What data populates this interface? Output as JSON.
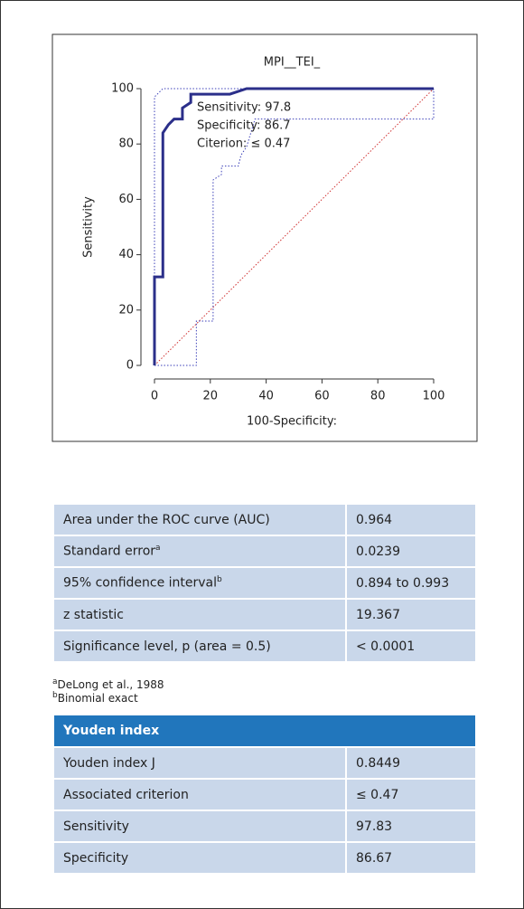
{
  "chart_data": {
    "type": "line",
    "title": "MPI__TEI_",
    "xlabel": "100-Specificity:",
    "ylabel": "Sensitivity",
    "xlim": [
      0,
      100
    ],
    "ylim": [
      0,
      100
    ],
    "xticks": [
      0,
      20,
      40,
      60,
      80,
      100
    ],
    "yticks": [
      0,
      20,
      40,
      60,
      80,
      100
    ],
    "series": [
      {
        "color": "#7b1fa2",
        "style": "diagonal",
        "x": [
          0,
          100
        ],
        "values": [
          0,
          100
        ]
      },
      {
        "color": "#3b3fb8",
        "style": "dotted",
        "x": [
          0,
          0,
          3,
          100
        ],
        "values": [
          0,
          97,
          100,
          100
        ]
      },
      {
        "color": "#3b3fb8",
        "style": "dotted",
        "x": [
          0,
          15,
          15,
          21,
          21,
          24,
          24,
          30,
          31,
          33,
          36,
          100,
          100
        ],
        "values": [
          0,
          0,
          16,
          16,
          67,
          69,
          72,
          72,
          76,
          79,
          89,
          89,
          100
        ]
      },
      {
        "color": "#2b2f8a",
        "style": "solid",
        "x": [
          0,
          0,
          3,
          3,
          5,
          7,
          10,
          10,
          13,
          13,
          27,
          33,
          100
        ],
        "values": [
          0,
          32,
          32,
          84,
          87,
          89,
          89,
          93,
          95,
          98,
          98,
          100,
          100
        ]
      }
    ],
    "annotations": [
      "Sensitivity: 97.8",
      "Specificity: 86.7",
      "Citerion: ≤ 0.47"
    ]
  },
  "table": {
    "rows": [
      [
        {
          "text": "Area under the ROC curve (AUC)"
        },
        {
          "text": "0.964"
        }
      ],
      [
        {
          "text": "Standard error",
          "sup": "a"
        },
        {
          "text": "0.0239"
        }
      ],
      [
        {
          "text": "95% confidence interval",
          "sup": "b"
        },
        {
          "text": "0.894 to 0.993"
        }
      ],
      [
        {
          "text": "z statistic"
        },
        {
          "text": "19.367"
        }
      ],
      [
        {
          "text": "Significance level, p (area = 0.5)"
        },
        {
          "text": "< 0.0001"
        }
      ]
    ]
  },
  "footnotes": [
    {
      "sup": "a",
      "text": "DeLong et al., 1988"
    },
    {
      "sup": "b",
      "text": "Binomial exact"
    }
  ],
  "youden": {
    "title": "Youden index",
    "rows": [
      [
        "Youden index J",
        "0.8449"
      ],
      [
        "Associated criterion",
        "≤ 0.47"
      ],
      [
        "Sensitivity",
        "97.83"
      ],
      [
        "Specificity",
        "86.67"
      ]
    ]
  }
}
